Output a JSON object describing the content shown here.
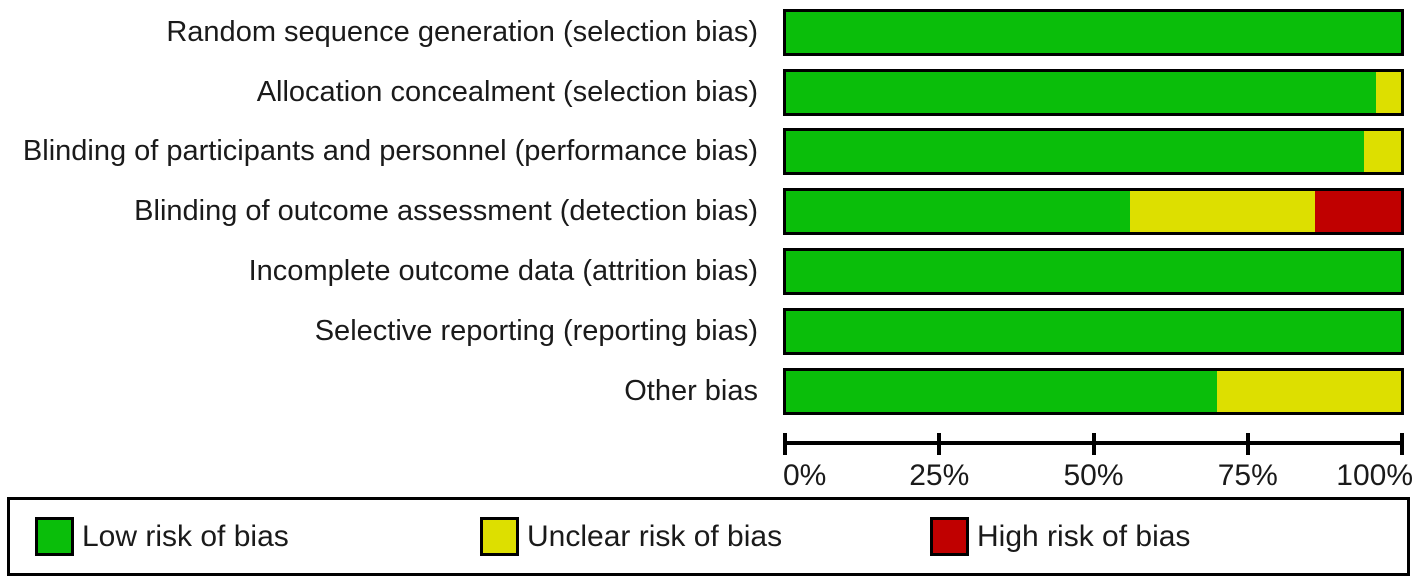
{
  "colors": {
    "low": "#0abe0a",
    "unclear": "#dddf00",
    "high": "#c00000",
    "border": "#000000",
    "background": "#ffffff"
  },
  "chart_data": {
    "type": "bar",
    "orientation": "horizontal",
    "stacked": true,
    "unit": "%",
    "title": "",
    "categories": [
      "Random sequence generation (selection bias)",
      "Allocation concealment (selection bias)",
      "Blinding of participants and personnel (performance bias)",
      "Blinding of outcome assessment (detection bias)",
      "Incomplete outcome data (attrition bias)",
      "Selective reporting (reporting bias)",
      "Other bias"
    ],
    "series": [
      {
        "name": "Low risk of bias",
        "color_key": "low",
        "values": [
          100,
          96,
          94,
          56,
          100,
          100,
          70
        ]
      },
      {
        "name": "Unclear risk of bias",
        "color_key": "unclear",
        "values": [
          0,
          4,
          6,
          30,
          0,
          0,
          30
        ]
      },
      {
        "name": "High risk of bias",
        "color_key": "high",
        "values": [
          0,
          0,
          0,
          14,
          0,
          0,
          0
        ]
      }
    ],
    "xlim": [
      0,
      100
    ],
    "x_tick_labels": [
      "0%",
      "25%",
      "50%",
      "75%",
      "100%"
    ],
    "x_tick_values": [
      0,
      25,
      50,
      75,
      100
    ],
    "grid": false,
    "legend_position": "bottom",
    "legend": [
      {
        "label": "Low risk of bias",
        "color_key": "low"
      },
      {
        "label": "Unclear risk of bias",
        "color_key": "unclear"
      },
      {
        "label": "High risk of bias",
        "color_key": "high"
      }
    ]
  },
  "layout_values": {
    "bar_row_tops": [
      9,
      69,
      128,
      188,
      248,
      308,
      368
    ],
    "legend_item_offsets": [
      25,
      470,
      920
    ]
  }
}
